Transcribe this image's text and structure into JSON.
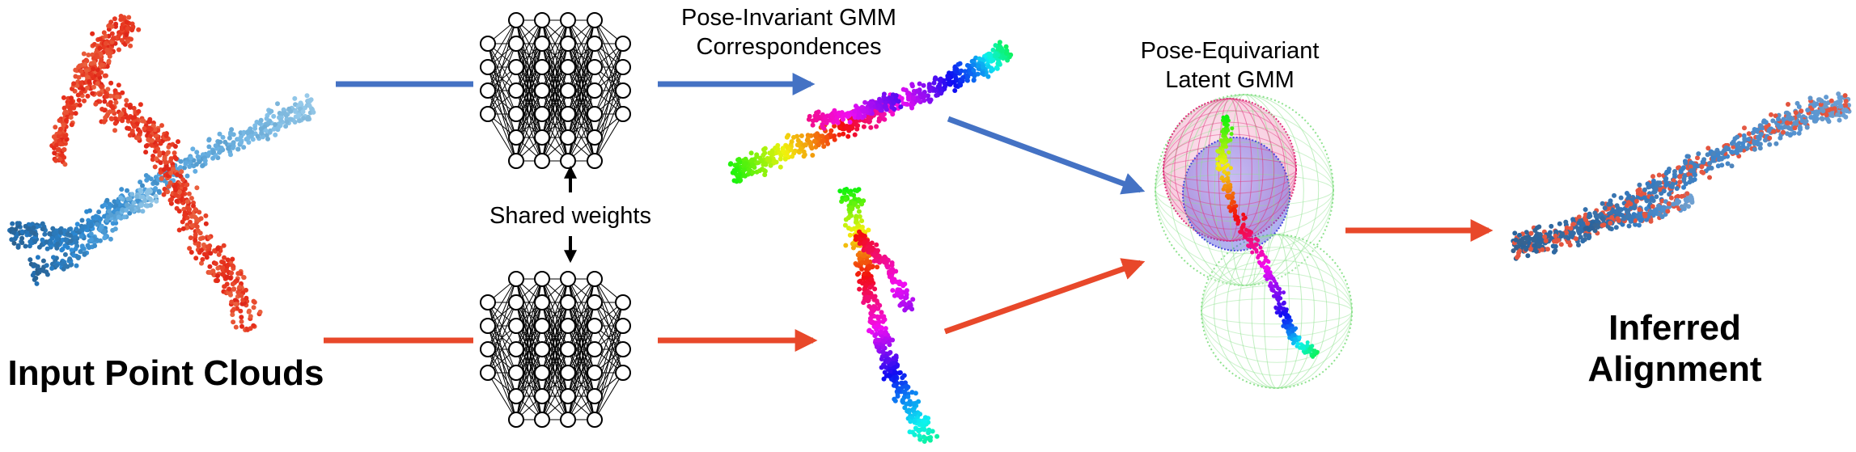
{
  "labels": {
    "input_point_clouds": "Input Point Clouds",
    "shared_weights": "Shared weights",
    "pose_invariant_line1": "Pose-Invariant GMM",
    "pose_invariant_line2": "Correspondences",
    "pose_equivariant_line1": "Pose-Equivariant",
    "pose_equivariant_line2": "Latent GMM",
    "inferred_line1": "Inferred",
    "inferred_line2": "Alignment"
  },
  "colors": {
    "source_branch": "#4472c4",
    "target_branch": "#e8482a",
    "source_cloud": "#3a7dc0",
    "target_cloud": "#e03a2a",
    "gmm_sphere_green": "#8ee28e",
    "gmm_sphere_red": "#f05a8a",
    "gmm_sphere_blue": "#5a5ae8"
  },
  "icons": {
    "network": "neural-network-icon",
    "arrow": "flow-arrow"
  }
}
